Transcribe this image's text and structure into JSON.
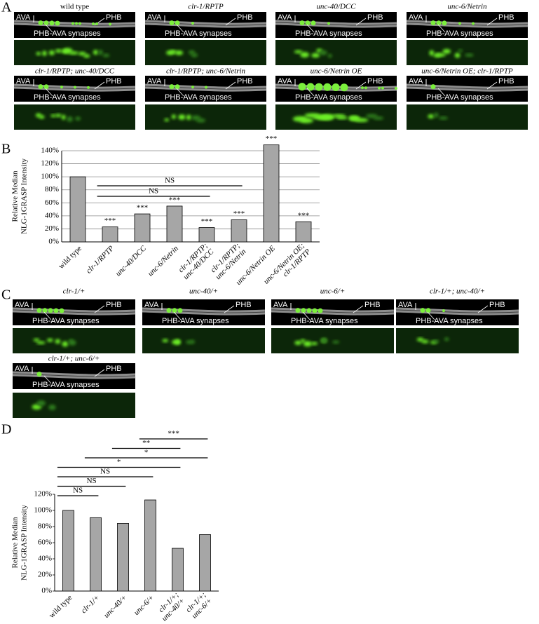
{
  "figure": {
    "panel_a": {
      "letter": "A",
      "panels": [
        {
          "title": "wild type",
          "italic": false,
          "ava": "AVA",
          "phb": "PHB",
          "synapses": "PHB-AVA synapses"
        },
        {
          "title": "clr-1/RPTP",
          "italic": true,
          "ava": "AVA",
          "phb": "PHB",
          "synapses": "PHB-AVA synapses"
        },
        {
          "title": "unc-40/DCC",
          "italic": true,
          "ava": "AVA",
          "phb": "PHB",
          "synapses": "PHB-AVA synapses"
        },
        {
          "title": "unc-6/Netrin",
          "italic": true,
          "ava": "AVA",
          "phb": "PHB",
          "synapses": "PHB-AVA synapses"
        },
        {
          "title": "clr-1/RPTP; unc-40/DCC",
          "italic": true,
          "ava": "AVA",
          "phb": "PHB",
          "synapses": "PHB-AVA synapses"
        },
        {
          "title": "clr-1/RPTP; unc-6/Netrin",
          "italic": true,
          "ava": "AVA",
          "phb": "PHB",
          "synapses": "PHB-AVA synapses"
        },
        {
          "title": "unc-6/Netrin OE",
          "italic": true,
          "ava": "AVA",
          "phb": "PHB",
          "synapses": "PHB-AVA synapses"
        },
        {
          "title": "unc-6/Netrin OE; clr-1/RPTP",
          "italic": true,
          "ava": "AVA",
          "phb": "PHB",
          "synapses": "PHB-AVA synapses"
        }
      ]
    },
    "panel_c": {
      "letter": "C",
      "panels": [
        {
          "title": "clr-1/+",
          "italic": true,
          "ava": "AVA",
          "phb": "PHB",
          "synapses": "PHB-AVA synapses"
        },
        {
          "title": "unc-40/+",
          "italic": true,
          "ava": "AVA",
          "phb": "PHB",
          "synapses": "PHB-AVA synapses"
        },
        {
          "title": "unc-6/+",
          "italic": true,
          "ava": "AVA",
          "phb": "PHB",
          "synapses": "PHB-AVA synapses"
        },
        {
          "title": "clr-1/+; unc-40/+",
          "italic": true,
          "ava": "AVA",
          "phb": "PHB",
          "synapses": "PHB-AVA synapses"
        },
        {
          "title": "clr-1/+; unc-6/+",
          "italic": true,
          "ava": "AVA",
          "phb": "PHB",
          "synapses": "PHB-AVA synapses"
        }
      ]
    }
  },
  "chart_data": [
    {
      "type": "bar",
      "panel_label": "B",
      "ylabel": [
        "Relative Median",
        "NLG-1GRASP Intensity"
      ],
      "categories": [
        "wild type",
        "clr-1/RPTP",
        "unc-40/DCC",
        "unc-6/Netrin",
        "clr-1/RPTP; unc-40/DCC",
        "clr-1/RPTP; unc-6/Netrin",
        "unc-6/Netrin OE",
        "unc-6/Netrin OE; clr-1/RPTP"
      ],
      "category_italic": [
        false,
        true,
        true,
        true,
        true,
        true,
        true,
        true
      ],
      "values": [
        100,
        23,
        43,
        55,
        22,
        34,
        149,
        31
      ],
      "significance": [
        null,
        "***",
        "***",
        "***",
        "***",
        "***",
        "***",
        "***"
      ],
      "comparisons": [
        {
          "between": [
            "clr-1/RPTP",
            "clr-1/RPTP; unc-40/DCC"
          ],
          "label": "NS"
        },
        {
          "between": [
            "clr-1/RPTP",
            "clr-1/RPTP; unc-6/Netrin"
          ],
          "label": "NS"
        }
      ],
      "color": "#a6a6a6",
      "grid": true,
      "ylim": [
        0,
        140
      ],
      "yticks": [
        {
          "value": 0,
          "label": "0%"
        },
        {
          "value": 20,
          "label": "20%"
        },
        {
          "value": 40,
          "label": "40%"
        },
        {
          "value": 60,
          "label": "60%"
        },
        {
          "value": 80,
          "label": "80%"
        },
        {
          "value": 100,
          "label": "100%"
        },
        {
          "value": 120,
          "label": "120%"
        },
        {
          "value": 140,
          "label": "140%"
        }
      ]
    },
    {
      "type": "bar",
      "panel_label": "D",
      "ylabel": [
        "Relative Median",
        "NLG-1GRASP Intensity"
      ],
      "categories": [
        "wild type",
        "clr-1/+",
        "unc-40/+",
        "unc-6/+",
        "clr-1/+; unc-40/+",
        "clr-1/+; unc-6/+"
      ],
      "category_italic": [
        false,
        true,
        true,
        true,
        true,
        true
      ],
      "values": [
        100,
        91,
        84,
        113,
        53,
        70
      ],
      "comparisons": [
        {
          "between": [
            "wild type",
            "clr-1/+"
          ],
          "label": "NS"
        },
        {
          "between": [
            "wild type",
            "unc-40/+"
          ],
          "label": "NS"
        },
        {
          "between": [
            "wild type",
            "unc-6/+"
          ],
          "label": "NS"
        },
        {
          "between": [
            "wild type",
            "clr-1/+; unc-40/+"
          ],
          "label": "*"
        },
        {
          "between": [
            "clr-1/+",
            "clr-1/+; unc-6/+"
          ],
          "label": "*"
        },
        {
          "between": [
            "unc-40/+",
            "clr-1/+; unc-40/+"
          ],
          "label": "**"
        },
        {
          "between": [
            "unc-6/+",
            "clr-1/+; unc-6/+"
          ],
          "label": "***"
        }
      ],
      "color": "#a6a6a6",
      "grid": false,
      "ylim": [
        0,
        120
      ],
      "yticks": [
        {
          "value": 0,
          "label": "0%"
        },
        {
          "value": 20,
          "label": "20%"
        },
        {
          "value": 40,
          "label": "40%"
        },
        {
          "value": 60,
          "label": "60%"
        },
        {
          "value": 80,
          "label": "80%"
        },
        {
          "value": 100,
          "label": "100%"
        },
        {
          "value": 120,
          "label": "120%"
        }
      ]
    }
  ]
}
